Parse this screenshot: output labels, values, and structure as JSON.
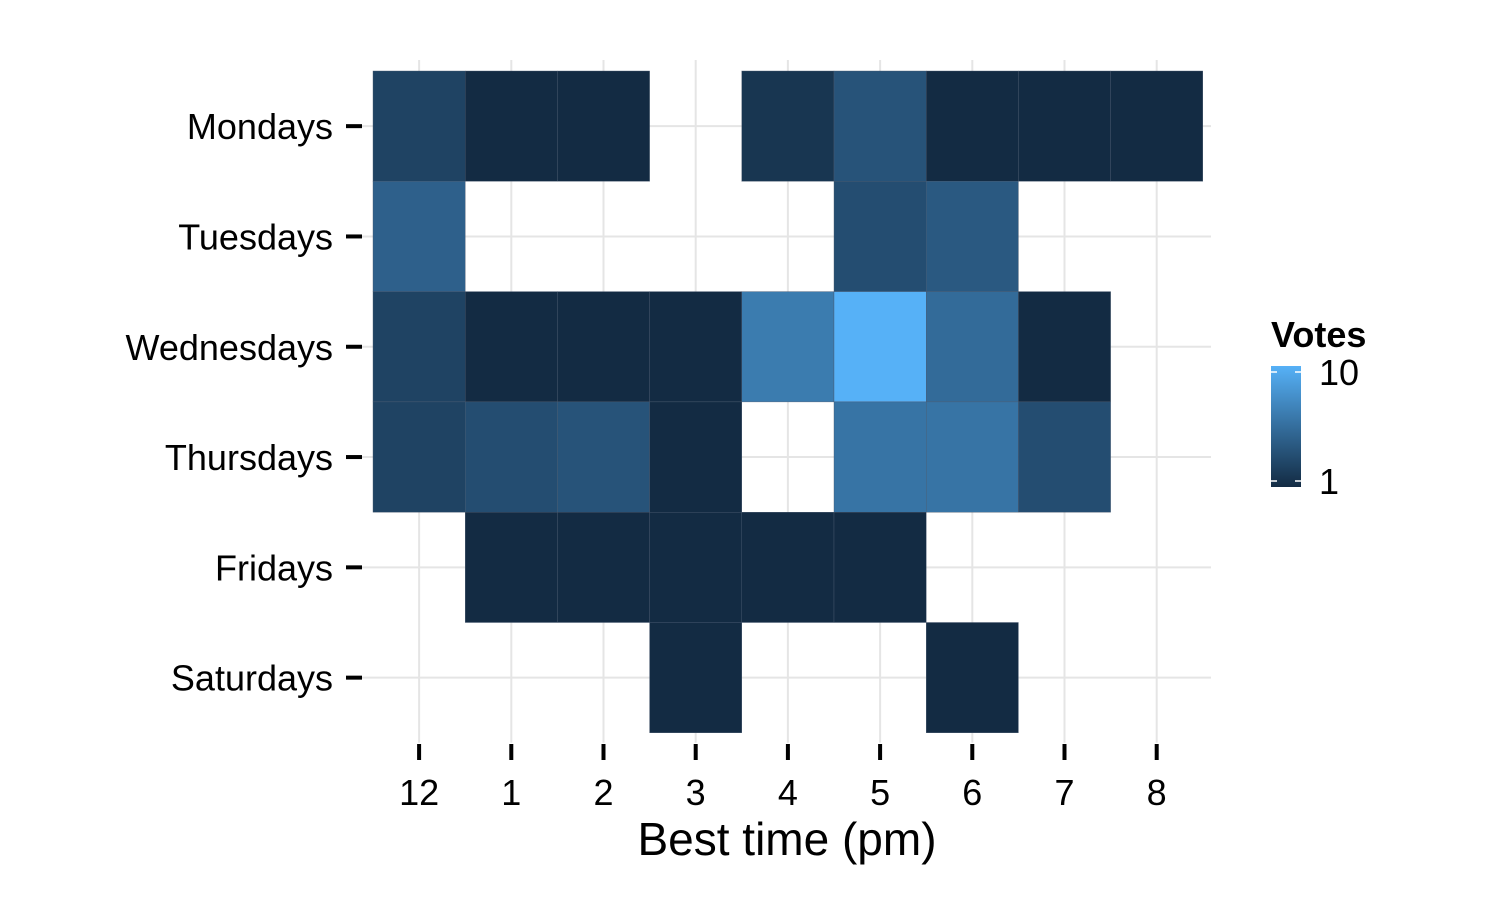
{
  "chart_data": {
    "type": "heatmap",
    "title": "",
    "xlabel": "Best time (pm)",
    "ylabel": "",
    "x_categories": [
      "12",
      "1",
      "2",
      "3",
      "4",
      "5",
      "6",
      "7",
      "8"
    ],
    "y_categories": [
      "Mondays",
      "Tuesdays",
      "Wednesdays",
      "Thursdays",
      "Fridays",
      "Saturdays"
    ],
    "grid": true,
    "color_scale": {
      "name": "Votes",
      "scale": "log",
      "low_color": "#132B43",
      "high_color": "#56B1F7",
      "range": [
        1,
        10
      ],
      "breaks": [
        1,
        10
      ],
      "break_labels": [
        "1",
        "10"
      ]
    },
    "legend_position": "right",
    "cells": [
      {
        "day": "Mondays",
        "time": "12",
        "votes": 1.5
      },
      {
        "day": "Mondays",
        "time": "1",
        "votes": 1
      },
      {
        "day": "Mondays",
        "time": "2",
        "votes": 1
      },
      {
        "day": "Mondays",
        "time": "4",
        "votes": 1.2
      },
      {
        "day": "Mondays",
        "time": "5",
        "votes": 2
      },
      {
        "day": "Mondays",
        "time": "6",
        "votes": 1
      },
      {
        "day": "Mondays",
        "time": "7",
        "votes": 1
      },
      {
        "day": "Mondays",
        "time": "8",
        "votes": 1
      },
      {
        "day": "Tuesdays",
        "time": "12",
        "votes": 2.5
      },
      {
        "day": "Tuesdays",
        "time": "5",
        "votes": 1.8
      },
      {
        "day": "Tuesdays",
        "time": "6",
        "votes": 2.2
      },
      {
        "day": "Wednesdays",
        "time": "12",
        "votes": 1.5
      },
      {
        "day": "Wednesdays",
        "time": "1",
        "votes": 1
      },
      {
        "day": "Wednesdays",
        "time": "2",
        "votes": 1
      },
      {
        "day": "Wednesdays",
        "time": "3",
        "votes": 1
      },
      {
        "day": "Wednesdays",
        "time": "4",
        "votes": 4
      },
      {
        "day": "Wednesdays",
        "time": "5",
        "votes": 10
      },
      {
        "day": "Wednesdays",
        "time": "6",
        "votes": 3
      },
      {
        "day": "Wednesdays",
        "time": "7",
        "votes": 1
      },
      {
        "day": "Thursdays",
        "time": "12",
        "votes": 1.5
      },
      {
        "day": "Thursdays",
        "time": "1",
        "votes": 1.8
      },
      {
        "day": "Thursdays",
        "time": "2",
        "votes": 2
      },
      {
        "day": "Thursdays",
        "time": "3",
        "votes": 1
      },
      {
        "day": "Thursdays",
        "time": "5",
        "votes": 3.5
      },
      {
        "day": "Thursdays",
        "time": "6",
        "votes": 3.5
      },
      {
        "day": "Thursdays",
        "time": "7",
        "votes": 1.8
      },
      {
        "day": "Fridays",
        "time": "1",
        "votes": 1
      },
      {
        "day": "Fridays",
        "time": "2",
        "votes": 1
      },
      {
        "day": "Fridays",
        "time": "3",
        "votes": 1
      },
      {
        "day": "Fridays",
        "time": "4",
        "votes": 1
      },
      {
        "day": "Fridays",
        "time": "5",
        "votes": 1
      },
      {
        "day": "Saturdays",
        "time": "3",
        "votes": 1
      },
      {
        "day": "Saturdays",
        "time": "6",
        "votes": 1
      }
    ]
  }
}
